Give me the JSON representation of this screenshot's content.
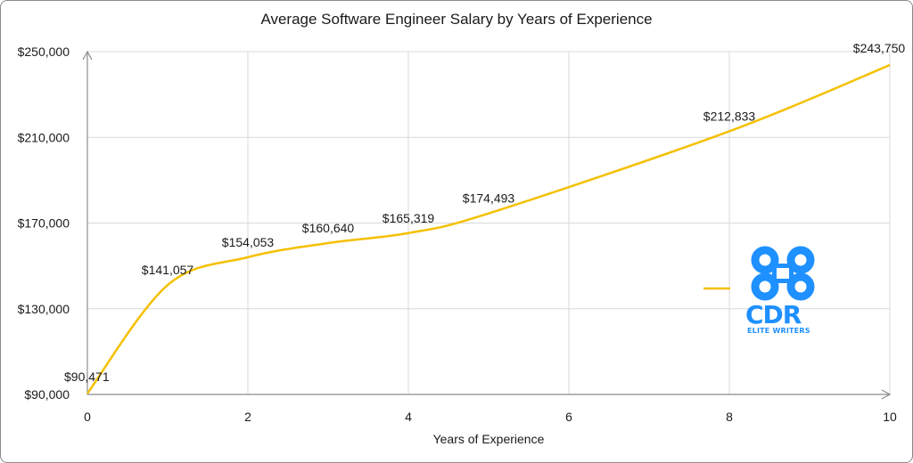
{
  "chart_data": {
    "type": "line",
    "title": "Average Software Engineer Salary by Years of Experience",
    "xlabel": "Years of Experience",
    "ylabel": "",
    "xlim": [
      0,
      10
    ],
    "ylim": [
      90000,
      250000
    ],
    "x_ticks": [
      "0",
      "2",
      "4",
      "6",
      "8",
      "10"
    ],
    "y_ticks": [
      "$90,000",
      "$130,000",
      "$170,000",
      "$210,000",
      "$250,000"
    ],
    "grid": true,
    "series": [
      {
        "color": "#f5c000",
        "points": [
          {
            "x": 0,
            "y": 90471,
            "label": "$90,471"
          },
          {
            "x": 1,
            "y": 141057,
            "label": "$141,057"
          },
          {
            "x": 2,
            "y": 154053,
            "label": "$154,053"
          },
          {
            "x": 3,
            "y": 160640,
            "label": "$160,640"
          },
          {
            "x": 4,
            "y": 165319,
            "label": "$165,319"
          },
          {
            "x": 5,
            "y": 174493,
            "label": "$174,493"
          },
          {
            "x": 8,
            "y": 212833,
            "label": "$212,833"
          },
          {
            "x": 10,
            "y": 243750,
            "label": "$243,750"
          }
        ]
      }
    ],
    "legend": "right"
  },
  "logo": {
    "text": "CDR",
    "subtext": "ELITE WRITERS",
    "color": "#1e90ff"
  }
}
